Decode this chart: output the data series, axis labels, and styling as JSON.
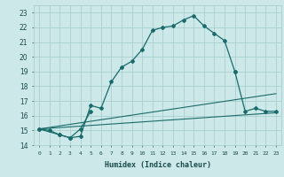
{
  "background_color": "#cce8e8",
  "grid_color": "#aacfcf",
  "line_color": "#1a6b6b",
  "xlabel": "Humidex (Indice chaleur)",
  "xlim": [
    -0.5,
    23.5
  ],
  "ylim": [
    14,
    23.5
  ],
  "yticks": [
    14,
    15,
    16,
    17,
    18,
    19,
    20,
    21,
    22,
    23
  ],
  "xticks": [
    0,
    1,
    2,
    3,
    4,
    5,
    6,
    7,
    8,
    9,
    10,
    11,
    12,
    13,
    14,
    15,
    16,
    17,
    18,
    19,
    20,
    21,
    22,
    23
  ],
  "line1_x": [
    0,
    1,
    2,
    3,
    4,
    5,
    6,
    7,
    8,
    9,
    10,
    11,
    12,
    13,
    14,
    15,
    16,
    17,
    18,
    19
  ],
  "line1_y": [
    15.1,
    15.0,
    14.7,
    14.5,
    14.6,
    16.7,
    16.5,
    18.3,
    19.3,
    19.7,
    20.5,
    21.8,
    22.0,
    22.1,
    22.5,
    22.8,
    22.1,
    21.6,
    21.1,
    19.0
  ],
  "line2_seg1_x": [
    0,
    2,
    3,
    4,
    5
  ],
  "line2_seg1_y": [
    15.1,
    14.7,
    14.5,
    15.1,
    16.3
  ],
  "line2_seg2_x": [
    19,
    20,
    21,
    22,
    23
  ],
  "line2_seg2_y": [
    19.0,
    16.3,
    16.5,
    16.3,
    16.3
  ],
  "line3_x": [
    0,
    23
  ],
  "line3_y": [
    15.1,
    17.5
  ],
  "line4_x": [
    0,
    23
  ],
  "line4_y": [
    15.1,
    16.2
  ]
}
